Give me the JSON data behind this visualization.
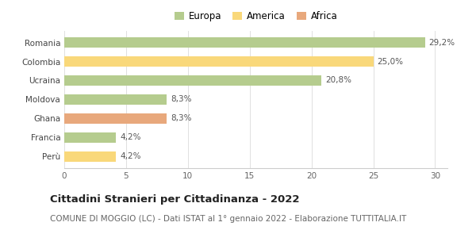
{
  "categories": [
    "Romania",
    "Colombia",
    "Ucraina",
    "Moldova",
    "Ghana",
    "Francia",
    "Perù"
  ],
  "values": [
    29.2,
    25.0,
    20.8,
    8.3,
    8.3,
    4.2,
    4.2
  ],
  "colors": [
    "#b5cc8e",
    "#f9d87a",
    "#b5cc8e",
    "#b5cc8e",
    "#e8a87c",
    "#b5cc8e",
    "#f9d87a"
  ],
  "continents": [
    "Europa",
    "America",
    "Europa",
    "Europa",
    "Africa",
    "Europa",
    "America"
  ],
  "value_labels": [
    "29,2%",
    "25,0%",
    "20,8%",
    "8,3%",
    "8,3%",
    "4,2%",
    "4,2%"
  ],
  "legend_labels": [
    "Europa",
    "America",
    "Africa"
  ],
  "legend_colors": [
    "#b5cc8e",
    "#f9d87a",
    "#e8a87c"
  ],
  "xlim": [
    0,
    31
  ],
  "xticks": [
    0,
    5,
    10,
    15,
    20,
    25,
    30
  ],
  "title": "Cittadini Stranieri per Cittadinanza - 2022",
  "subtitle": "COMUNE DI MOGGIO (LC) - Dati ISTAT al 1° gennaio 2022 - Elaborazione TUTTITALIA.IT",
  "bg_color": "#ffffff",
  "bar_height": 0.55,
  "title_fontsize": 9.5,
  "subtitle_fontsize": 7.5,
  "label_fontsize": 7.5,
  "tick_fontsize": 7.5,
  "legend_fontsize": 8.5
}
